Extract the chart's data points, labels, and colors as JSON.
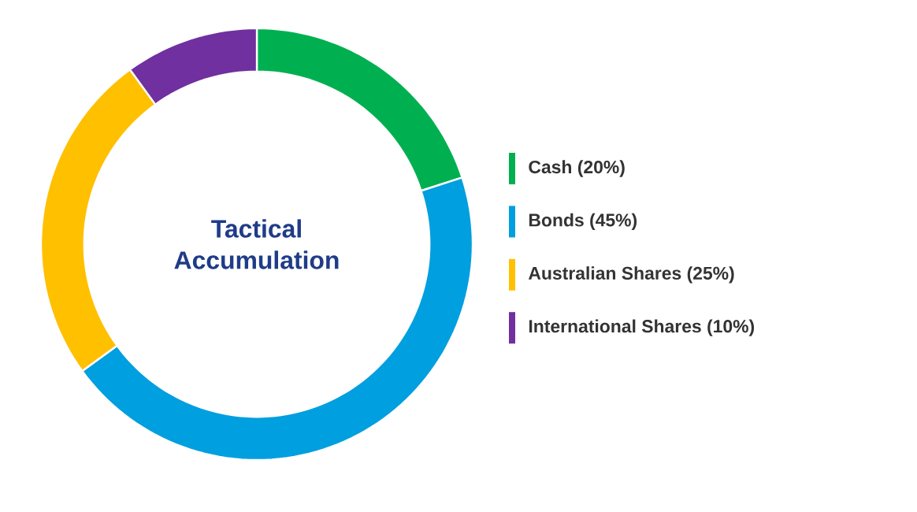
{
  "chart_data": {
    "type": "donut",
    "title": "Tactical Accumulation",
    "categories": [
      "Cash (20%)",
      "Bonds (45%)",
      "Australian Shares (25%)",
      "International Shares (10%)"
    ],
    "values": [
      20,
      45,
      25,
      10
    ],
    "colors": [
      "#00b050",
      "#009fdf",
      "#ffc000",
      "#7030a0"
    ],
    "legend": "right"
  }
}
